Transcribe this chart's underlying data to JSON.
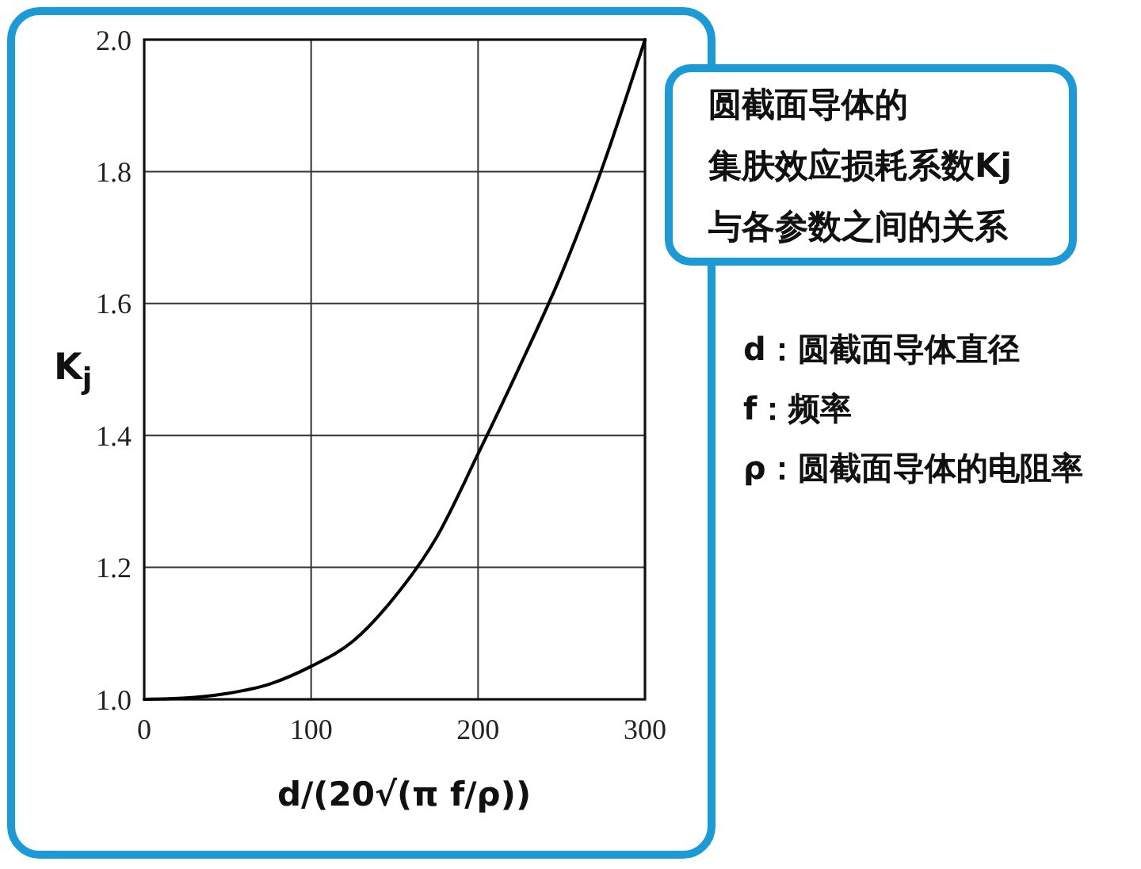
{
  "chart_data": {
    "type": "line",
    "title": "圆截面导体的集肤效应损耗系数Kj与各参数之间的关系",
    "xlabel": "d/(20√(π f/ρ))",
    "ylabel": "K$_{j}$",
    "annotations": [
      "d：圆截面导体直径",
      "f：频率",
      "ρ：圆截面导体的电阻率"
    ],
    "x": [
      0,
      25,
      50,
      75,
      100,
      125,
      150,
      175,
      200,
      225,
      250,
      275,
      300
    ],
    "series": [
      {
        "color": "#000000",
        "values": [
          1.0,
          1.002,
          1.009,
          1.023,
          1.05,
          1.088,
          1.155,
          1.245,
          1.372,
          1.505,
          1.645,
          1.81,
          2.0
        ]
      }
    ],
    "xlim": [
      0,
      300
    ],
    "ylim": [
      1,
      2
    ],
    "xticks": [
      0,
      100,
      200,
      300
    ],
    "yticks": [
      {
        "value": 1,
        "label": "1.0"
      },
      1.2,
      1.4,
      1.6,
      1.8,
      {
        "value": 2,
        "label": "2.0"
      }
    ],
    "grid": true
  }
}
